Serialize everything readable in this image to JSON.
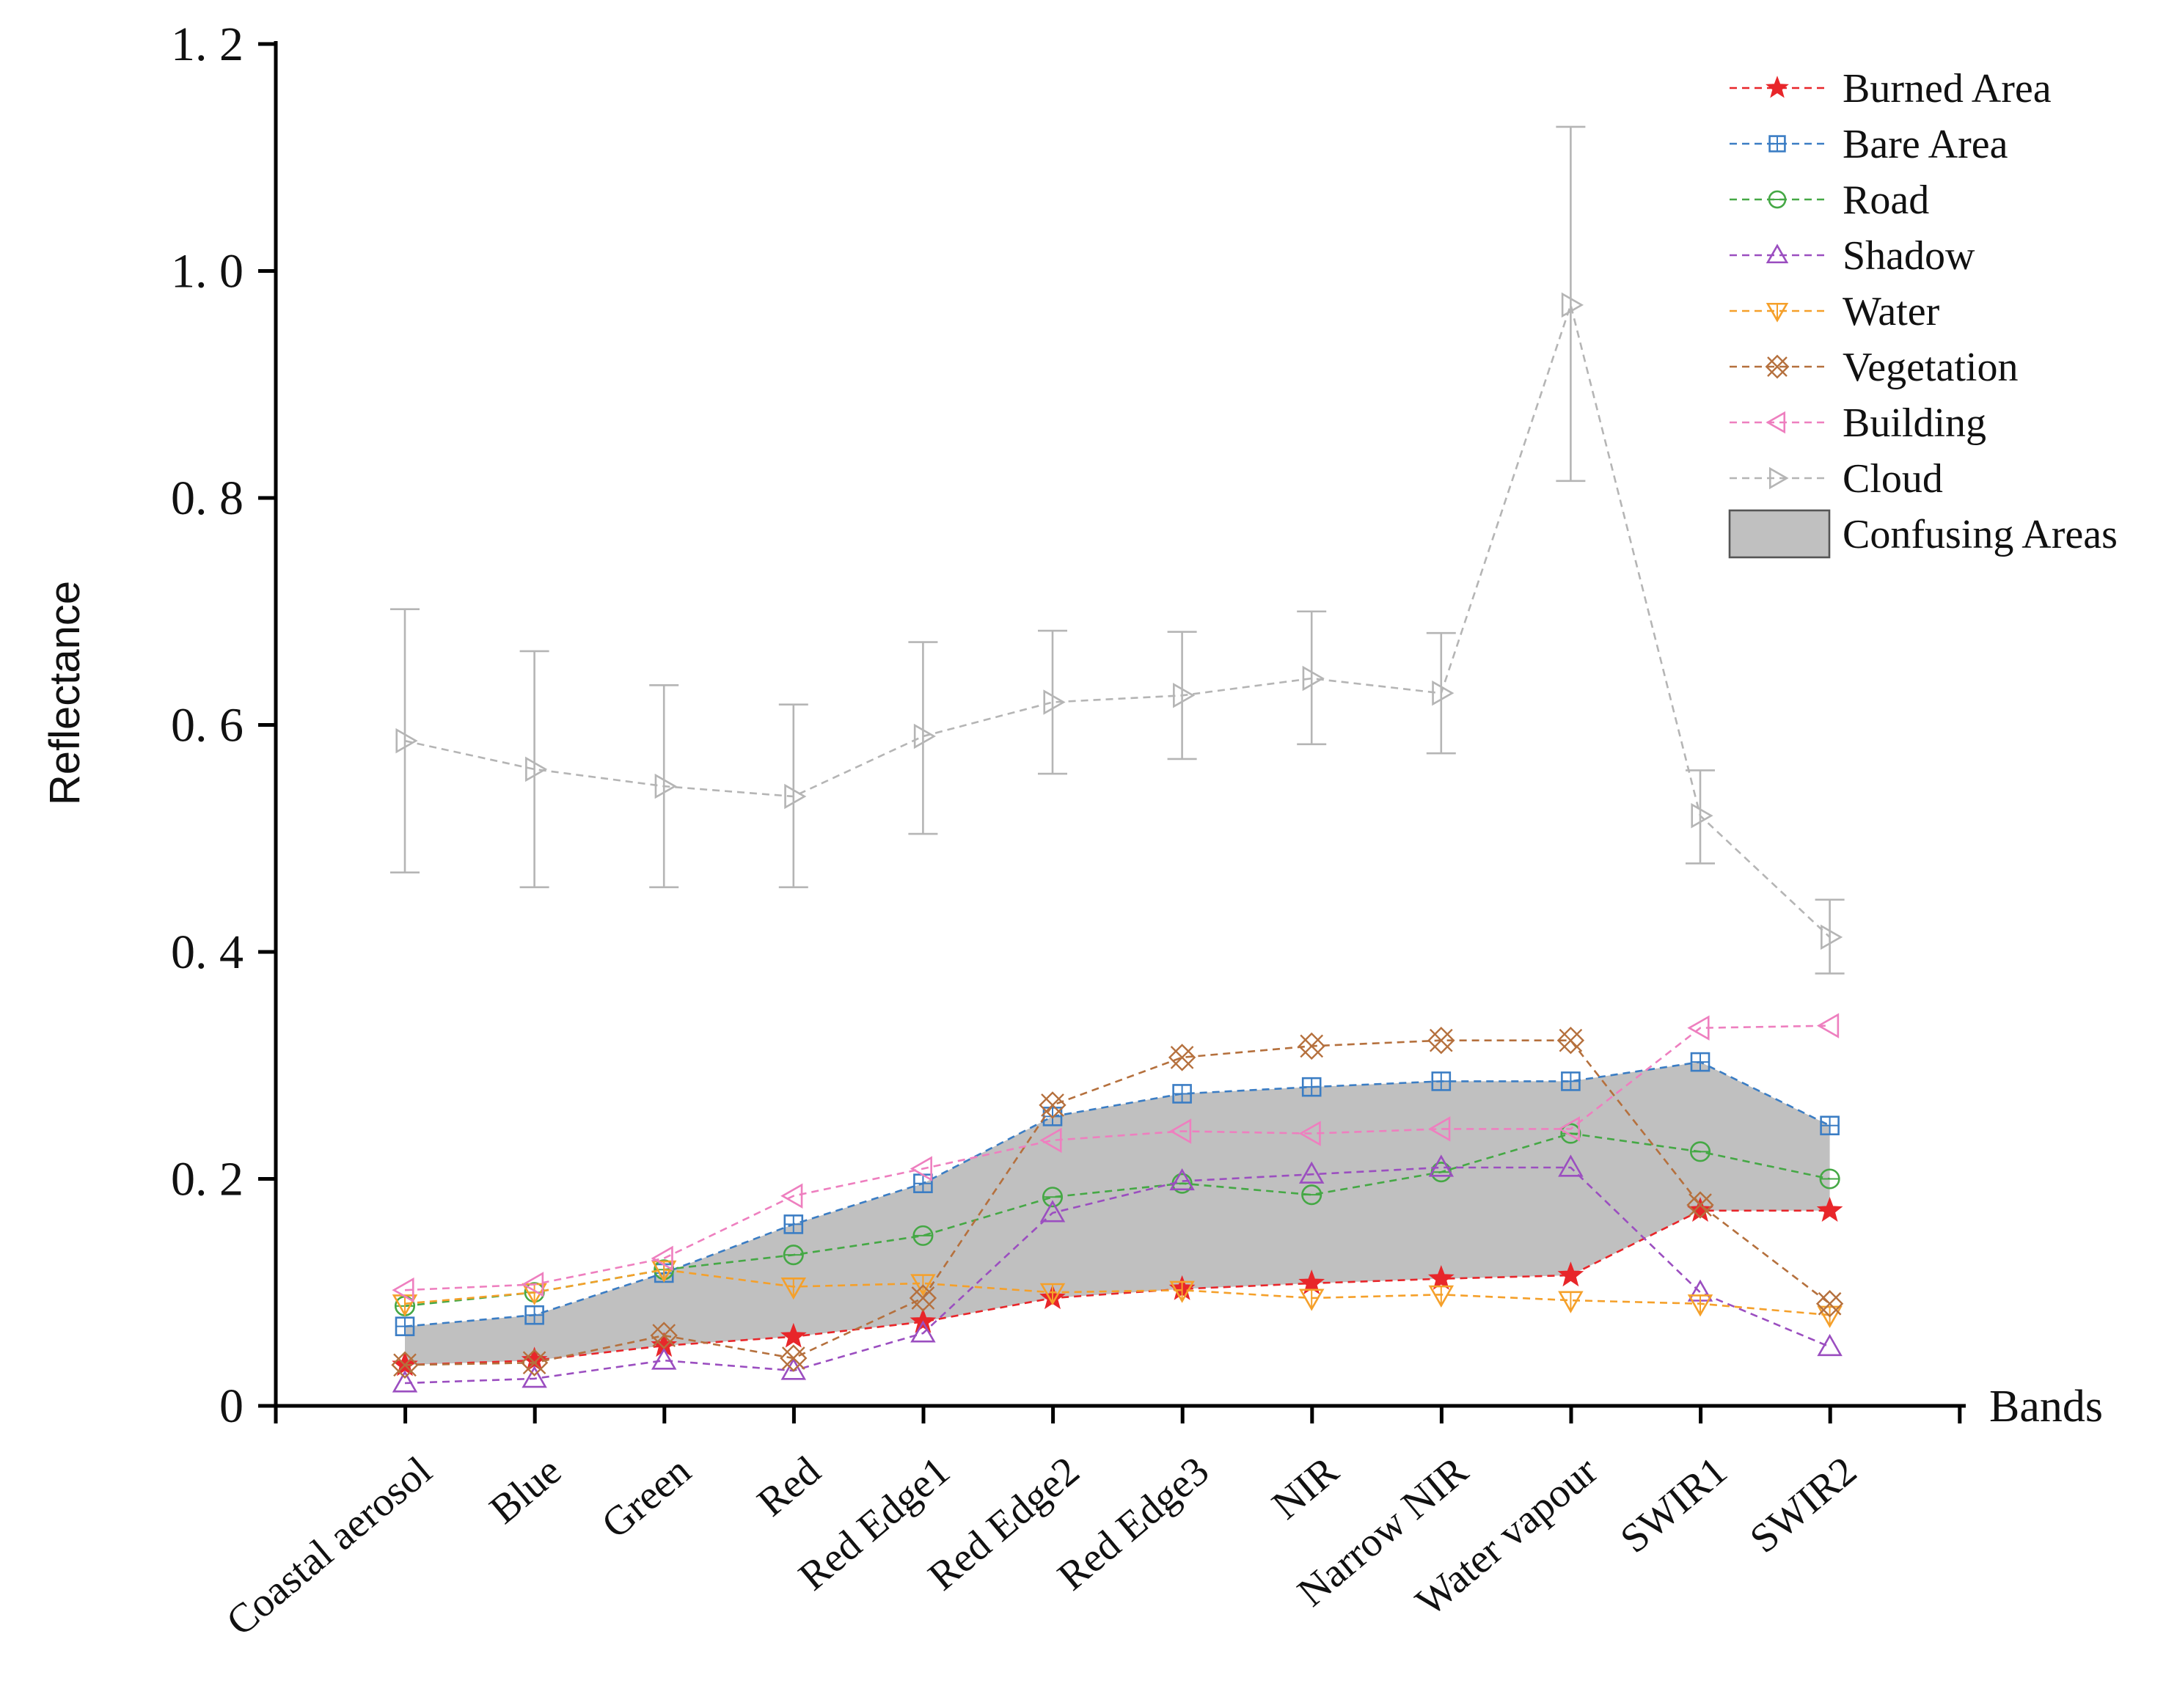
{
  "chart_data": {
    "type": "line",
    "xlabel": "Bands",
    "ylabel": "Reflectance",
    "ylim": [
      0,
      1.2
    ],
    "y_ticks": [
      "0",
      "0. 2",
      "0. 4",
      "0. 6",
      "0. 8",
      "1. 0",
      "1. 2"
    ],
    "y_tick_values": [
      0,
      0.2,
      0.4,
      0.6,
      0.8,
      1.0,
      1.2
    ],
    "categories": [
      "Coastal aerosol",
      "Blue",
      "Green",
      "Red",
      "Red Edge1",
      "Red Edge2",
      "Red Edge3",
      "NIR",
      "Narrow NIR",
      "Water vapour",
      "SWIR1",
      "SWIR2"
    ],
    "grid": false,
    "legend_position": "top-right",
    "series": [
      {
        "name": "Burned Area",
        "marker": "star",
        "color": "#e8262a",
        "values": [
          0.036,
          0.04,
          0.053,
          0.061,
          0.074,
          0.095,
          0.103,
          0.108,
          0.112,
          0.115,
          0.172,
          0.172
        ]
      },
      {
        "name": "Bare Area",
        "marker": "square",
        "color": "#3b7dc4",
        "values": [
          0.07,
          0.08,
          0.117,
          0.16,
          0.196,
          0.255,
          0.275,
          0.281,
          0.286,
          0.286,
          0.303,
          0.247
        ]
      },
      {
        "name": "Road",
        "marker": "circle",
        "color": "#45a845",
        "values": [
          0.088,
          0.1,
          0.12,
          0.133,
          0.15,
          0.184,
          0.196,
          0.186,
          0.206,
          0.24,
          0.224,
          0.2
        ]
      },
      {
        "name": "Shadow",
        "marker": "triangle-up",
        "color": "#9b4ec0",
        "values": [
          0.02,
          0.024,
          0.04,
          0.031,
          0.064,
          0.17,
          0.198,
          0.204,
          0.21,
          0.21,
          0.1,
          0.052
        ]
      },
      {
        "name": "Water",
        "marker": "triangle-down",
        "color": "#f5a02a",
        "values": [
          0.09,
          0.1,
          0.12,
          0.105,
          0.108,
          0.1,
          0.102,
          0.095,
          0.098,
          0.093,
          0.09,
          0.08
        ]
      },
      {
        "name": "Vegetation",
        "marker": "x-square",
        "color": "#b5703d",
        "values": [
          0.036,
          0.038,
          0.062,
          0.042,
          0.095,
          0.265,
          0.307,
          0.317,
          0.322,
          0.322,
          0.177,
          0.09
        ]
      },
      {
        "name": "Building",
        "marker": "triangle-left",
        "color": "#ee7fbf",
        "values": [
          0.102,
          0.107,
          0.13,
          0.185,
          0.209,
          0.234,
          0.242,
          0.24,
          0.244,
          0.244,
          0.333,
          0.335
        ]
      },
      {
        "name": "Cloud",
        "marker": "triangle-right",
        "color": "#b5b5b5",
        "values": [
          0.586,
          0.561,
          0.546,
          0.537,
          0.59,
          0.62,
          0.626,
          0.641,
          0.628,
          0.97,
          0.52,
          0.413
        ],
        "error_low": [
          0.47,
          0.457,
          0.457,
          0.457,
          0.504,
          0.557,
          0.57,
          0.583,
          0.575,
          0.815,
          0.478,
          0.381
        ],
        "error_high": [
          0.702,
          0.665,
          0.635,
          0.618,
          0.673,
          0.683,
          0.682,
          0.7,
          0.681,
          1.127,
          0.56,
          0.446
        ]
      }
    ],
    "band": {
      "name": "Confusing Areas",
      "color": "#c0c0c0",
      "upper": [
        0.07,
        0.08,
        0.117,
        0.16,
        0.196,
        0.255,
        0.275,
        0.281,
        0.286,
        0.286,
        0.303,
        0.247
      ],
      "lower": [
        0.036,
        0.04,
        0.053,
        0.061,
        0.074,
        0.095,
        0.103,
        0.108,
        0.112,
        0.115,
        0.172,
        0.172
      ]
    }
  }
}
